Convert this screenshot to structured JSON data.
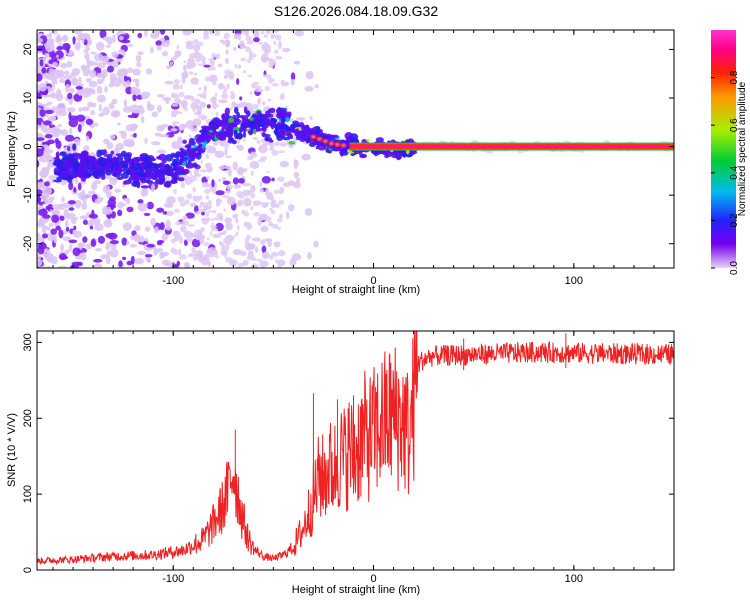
{
  "title": "S126.2026.084.18.09.G32",
  "chart_data": [
    {
      "type": "heatmap",
      "xlabel": "Height of straight line (km)",
      "ylabel": "Frequency (Hz)",
      "xlim": [
        -168,
        150
      ],
      "ylim": [
        -25,
        24
      ],
      "xticks": [
        -100,
        0,
        100
      ],
      "xtick_labels": [
        "-100",
        "0",
        "100"
      ],
      "yticks": [
        -20,
        -10,
        0,
        10,
        20
      ],
      "ytick_labels": [
        "-20",
        "-10",
        "0",
        "10",
        "20"
      ],
      "colorbar": {
        "label": "Normalized spectral amplitude",
        "range": [
          0,
          1
        ],
        "ticks": [
          0.0,
          0.2,
          0.4,
          0.6,
          0.8
        ],
        "tick_labels": [
          "0.0",
          "0.2",
          "0.4",
          "0.6",
          "0.8"
        ],
        "colors": [
          "#e6d2f5",
          "#7700ee",
          "#2222ff",
          "#00bbee",
          "#00cc33",
          "#aaee00",
          "#ff9900",
          "#ff2200",
          "#ff0088",
          "#ff33cc"
        ]
      },
      "ridge": [
        {
          "x": -168,
          "y": -4
        },
        {
          "x": -130,
          "y": -4
        },
        {
          "x": -115,
          "y": -5
        },
        {
          "x": -100,
          "y": -5
        },
        {
          "x": -90,
          "y": -1
        },
        {
          "x": -80,
          "y": 4
        },
        {
          "x": -70,
          "y": 4
        },
        {
          "x": -50,
          "y": 5
        },
        {
          "x": -40,
          "y": 4
        },
        {
          "x": -30,
          "y": 2
        },
        {
          "x": -20,
          "y": 0.5
        },
        {
          "x": -10,
          "y": 0
        },
        {
          "x": 0,
          "y": -0.5
        },
        {
          "x": 150,
          "y": 0
        }
      ],
      "carrier_band": {
        "x_start": -12,
        "x_end": 150,
        "y": 0
      }
    },
    {
      "type": "line",
      "xlabel": "Height of straight line (km)",
      "ylabel": "SNR (10 * V/V)",
      "xlim": [
        -168,
        150
      ],
      "ylim": [
        0,
        315
      ],
      "xticks": [
        -100,
        0,
        100
      ],
      "xtick_labels": [
        "-100",
        "0",
        "100"
      ],
      "yticks": [
        0,
        100,
        200,
        300
      ],
      "ytick_labels": [
        "0",
        "100",
        "200",
        "300"
      ],
      "color": "#ee2222",
      "series": [
        {
          "name": "SNR",
          "x": [
            -168,
            -150,
            -130,
            -110,
            -95,
            -85,
            -80,
            -75,
            -72,
            -70,
            -68,
            -66,
            -63,
            -60,
            -55,
            -50,
            -45,
            -40,
            -35,
            -30,
            -27,
            -25,
            -22,
            -20,
            -17,
            -15,
            -12,
            -10,
            -7,
            -5,
            -2,
            0,
            5,
            10,
            15,
            18,
            20,
            22,
            25,
            30,
            40,
            60,
            80,
            100,
            120,
            150
          ],
          "y": [
            12,
            14,
            18,
            20,
            26,
            40,
            60,
            85,
            110,
            135,
            105,
            75,
            45,
            28,
            18,
            15,
            20,
            30,
            55,
            95,
            125,
            120,
            135,
            130,
            150,
            145,
            160,
            145,
            170,
            175,
            175,
            180,
            195,
            205,
            195,
            175,
            220,
            270,
            278,
            282,
            283,
            285,
            287,
            286,
            285,
            284
          ]
        }
      ],
      "spikes": [
        {
          "x": -69,
          "y": 185
        },
        {
          "x": -30,
          "y": 233
        },
        {
          "x": -18,
          "y": 225
        },
        {
          "x": -10,
          "y": 230
        },
        {
          "x": 2,
          "y": 245
        },
        {
          "x": 10,
          "y": 250
        },
        {
          "x": 20,
          "y": 262
        },
        {
          "x": 45,
          "y": 305
        },
        {
          "x": 96,
          "y": 312
        }
      ]
    }
  ]
}
